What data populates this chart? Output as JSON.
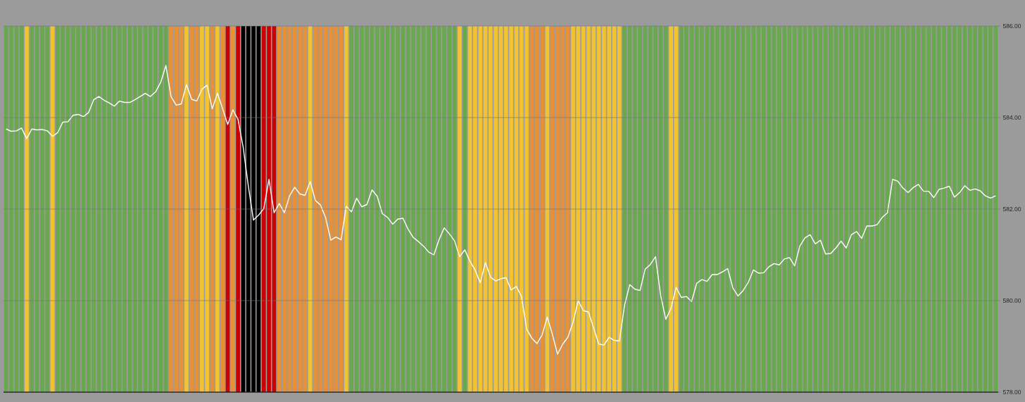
{
  "chart_data": {
    "type": "bar",
    "categories": [
      null,
      null,
      null,
      null,
      null,
      null,
      null,
      null,
      null,
      null,
      null,
      null,
      null,
      null,
      null,
      null,
      null,
      null,
      null,
      null,
      null,
      null,
      null,
      null,
      null,
      null,
      null,
      null,
      null,
      null,
      null,
      null,
      null,
      null,
      null,
      null,
      null,
      null,
      null,
      null,
      null,
      null,
      null,
      null,
      null,
      null,
      null,
      null,
      null,
      null,
      null,
      null,
      null,
      null,
      null,
      null,
      null,
      null,
      null,
      null,
      null,
      null,
      null,
      null,
      null,
      null,
      null,
      null,
      null,
      null,
      null,
      null,
      null,
      null,
      null,
      null,
      null,
      null,
      null,
      null,
      null,
      null,
      null,
      null,
      null,
      null,
      null,
      null,
      null,
      null,
      null,
      null,
      null,
      null,
      null,
      null,
      null,
      null,
      null,
      null,
      null,
      null,
      null,
      null,
      null,
      null,
      null,
      null,
      null,
      null,
      null,
      null,
      null,
      null,
      null,
      null,
      null,
      null,
      null,
      null,
      null,
      null,
      null,
      null,
      null,
      null,
      null,
      null,
      null,
      null,
      null,
      null,
      null,
      null,
      null,
      null,
      null,
      null,
      null,
      null,
      null,
      null,
      null,
      null,
      null,
      null,
      null,
      null,
      null,
      null,
      null,
      null,
      null,
      null,
      null,
      null,
      null,
      null,
      null,
      null,
      null,
      null,
      null,
      null,
      null,
      null,
      null,
      null,
      null,
      null,
      null,
      null,
      null,
      null,
      null,
      null,
      null,
      null,
      null,
      null,
      null,
      null,
      null,
      null,
      null,
      null,
      null,
      null,
      null,
      null,
      null,
      null,
      null
    ],
    "series": [
      {
        "color": "#6aa84f",
        "values": [
          586,
          586,
          586,
          586,
          null,
          586,
          586,
          586,
          586,
          null,
          586,
          586,
          586,
          586,
          586,
          586,
          586,
          586,
          586,
          586,
          586,
          586,
          586,
          586,
          586,
          586,
          586,
          586,
          586,
          586,
          586,
          586,
          null,
          null,
          null,
          null,
          null,
          null,
          null,
          null,
          null,
          null,
          null,
          null,
          null,
          null,
          null,
          null,
          null,
          null,
          null,
          null,
          null,
          null,
          null,
          null,
          null,
          null,
          null,
          null,
          null,
          null,
          null,
          null,
          null,
          null,
          null,
          586,
          586,
          586,
          586,
          586,
          586,
          586,
          586,
          586,
          586,
          586,
          586,
          586,
          586,
          586,
          586,
          586,
          586,
          586,
          586,
          586,
          null,
          586,
          null,
          null,
          null,
          null,
          null,
          null,
          null,
          null,
          null,
          null,
          null,
          null,
          null,
          null,
          null,
          null,
          null,
          null,
          null,
          null,
          null,
          null,
          null,
          null,
          null,
          null,
          null,
          null,
          null,
          null,
          586,
          586,
          586,
          586,
          586,
          586,
          586,
          586,
          586,
          null,
          null,
          586,
          586,
          586,
          586,
          586,
          586,
          586,
          586,
          586,
          586,
          586,
          586,
          586,
          586,
          586,
          586,
          586,
          586,
          586,
          586,
          586,
          586,
          586,
          586,
          586,
          586,
          586,
          586,
          586,
          586,
          586,
          586,
          586,
          586,
          586,
          586,
          586,
          586,
          586,
          586,
          586,
          586,
          586,
          586,
          586,
          586,
          586,
          586,
          586,
          586,
          586,
          586,
          586,
          586,
          586,
          586,
          586,
          586,
          586,
          586,
          586,
          586
        ]
      },
      {
        "color": "#f1c232",
        "values": [
          null,
          null,
          null,
          null,
          586,
          null,
          null,
          null,
          null,
          586,
          null,
          null,
          null,
          null,
          null,
          null,
          null,
          null,
          null,
          null,
          null,
          null,
          null,
          null,
          null,
          null,
          null,
          null,
          null,
          null,
          null,
          null,
          null,
          null,
          null,
          586,
          null,
          null,
          586,
          586,
          null,
          586,
          null,
          null,
          null,
          null,
          null,
          null,
          null,
          null,
          null,
          null,
          null,
          null,
          null,
          null,
          null,
          null,
          null,
          586,
          null,
          null,
          null,
          null,
          null,
          null,
          586,
          null,
          null,
          null,
          null,
          null,
          null,
          null,
          null,
          null,
          null,
          null,
          null,
          null,
          null,
          null,
          null,
          null,
          null,
          null,
          null,
          null,
          586,
          null,
          586,
          586,
          586,
          586,
          586,
          586,
          586,
          586,
          586,
          586,
          586,
          586,
          null,
          null,
          null,
          586,
          null,
          null,
          null,
          null,
          586,
          586,
          586,
          586,
          586,
          586,
          586,
          586,
          586,
          586,
          null,
          null,
          null,
          null,
          null,
          null,
          null,
          null,
          null,
          586,
          586,
          null,
          null,
          null,
          null,
          null,
          null,
          null,
          null,
          null,
          null,
          null,
          null,
          null,
          null,
          null,
          null,
          null,
          null,
          null,
          null,
          null,
          null,
          null,
          null,
          null,
          null,
          null,
          null,
          null,
          null,
          null,
          null,
          null,
          null,
          null,
          null,
          null,
          null,
          null,
          null,
          null,
          null,
          null,
          null,
          null,
          null,
          null,
          null,
          null,
          null,
          null,
          null,
          null,
          null,
          null,
          null,
          null,
          null,
          null,
          null,
          null,
          null
        ]
      },
      {
        "color": "#e69138",
        "values": [
          null,
          null,
          null,
          null,
          null,
          null,
          null,
          null,
          null,
          null,
          null,
          null,
          null,
          null,
          null,
          null,
          null,
          null,
          null,
          null,
          null,
          null,
          null,
          null,
          null,
          null,
          null,
          null,
          null,
          null,
          null,
          null,
          586,
          586,
          586,
          null,
          586,
          586,
          null,
          null,
          586,
          null,
          586,
          null,
          586,
          null,
          null,
          null,
          null,
          null,
          null,
          null,
          null,
          586,
          586,
          586,
          586,
          586,
          586,
          null,
          586,
          586,
          586,
          586,
          586,
          586,
          null,
          null,
          null,
          null,
          null,
          null,
          null,
          null,
          null,
          null,
          null,
          null,
          null,
          null,
          null,
          null,
          null,
          null,
          null,
          null,
          null,
          null,
          null,
          null,
          null,
          null,
          null,
          null,
          null,
          null,
          null,
          null,
          null,
          null,
          null,
          null,
          586,
          586,
          586,
          null,
          586,
          586,
          586,
          586,
          null,
          null,
          null,
          null,
          null,
          null,
          null,
          null,
          null,
          null,
          null,
          null,
          null,
          null,
          null,
          null,
          null,
          null,
          null,
          null,
          null,
          null,
          null,
          null,
          null,
          null,
          null,
          null,
          null,
          null,
          null,
          null,
          null,
          null,
          null,
          null,
          null,
          null,
          null,
          null,
          null,
          null,
          null,
          null,
          null,
          null,
          null,
          null,
          null,
          null,
          null,
          null,
          null,
          null,
          null,
          null,
          null,
          null,
          null,
          null,
          null,
          null,
          null,
          null,
          null,
          null,
          null,
          null,
          null,
          null,
          null,
          null,
          null,
          null,
          null,
          null,
          null,
          null,
          null,
          null,
          null,
          null,
          null
        ]
      },
      {
        "color": "#cc0000",
        "values": [
          null,
          null,
          null,
          null,
          null,
          null,
          null,
          null,
          null,
          null,
          null,
          null,
          null,
          null,
          null,
          null,
          null,
          null,
          null,
          null,
          null,
          null,
          null,
          null,
          null,
          null,
          null,
          null,
          null,
          null,
          null,
          null,
          null,
          null,
          null,
          null,
          null,
          null,
          null,
          null,
          null,
          null,
          null,
          586,
          null,
          586,
          null,
          null,
          null,
          null,
          586,
          586,
          586,
          null,
          null,
          null,
          null,
          null,
          null,
          null,
          null,
          null,
          null,
          null,
          null,
          null,
          null,
          null,
          null,
          null,
          null,
          null,
          null,
          null,
          null,
          null,
          null,
          null,
          null,
          null,
          null,
          null,
          null,
          null,
          null,
          null,
          null,
          null,
          null,
          null,
          null,
          null,
          null,
          null,
          null,
          null,
          null,
          null,
          null,
          null,
          null,
          null,
          null,
          null,
          null,
          null,
          null,
          null,
          null,
          null,
          null,
          null,
          null,
          null,
          null,
          null,
          null,
          null,
          null,
          null,
          null,
          null,
          null,
          null,
          null,
          null,
          null,
          null,
          null,
          null,
          null,
          null,
          null,
          null,
          null,
          null,
          null,
          null,
          null,
          null,
          null,
          null,
          null,
          null,
          null,
          null,
          null,
          null,
          null,
          null,
          null,
          null,
          null,
          null,
          null,
          null,
          null,
          null,
          null,
          null,
          null,
          null,
          null,
          null,
          null,
          null,
          null,
          null,
          null,
          null,
          null,
          null,
          null,
          null,
          null,
          null,
          null,
          null,
          null,
          null,
          null,
          null,
          null,
          null,
          null,
          null,
          null,
          null,
          null,
          null,
          null,
          null,
          null
        ]
      },
      {
        "color": "#000000",
        "values": [
          null,
          null,
          null,
          null,
          null,
          null,
          null,
          null,
          null,
          null,
          null,
          null,
          null,
          null,
          null,
          null,
          null,
          null,
          null,
          null,
          null,
          null,
          null,
          null,
          null,
          null,
          null,
          null,
          null,
          null,
          null,
          null,
          null,
          null,
          null,
          null,
          null,
          null,
          null,
          null,
          null,
          null,
          null,
          null,
          null,
          null,
          586,
          586,
          586,
          586,
          null,
          null,
          null,
          null,
          null,
          null,
          null,
          null,
          null,
          null,
          null,
          null,
          null,
          null,
          null,
          null,
          null,
          null,
          null,
          null,
          null,
          null,
          null,
          null,
          null,
          null,
          null,
          null,
          null,
          null,
          null,
          null,
          null,
          null,
          null,
          null,
          null,
          null,
          null,
          null,
          null,
          null,
          null,
          null,
          null,
          null,
          null,
          null,
          null,
          null,
          null,
          null,
          null,
          null,
          null,
          null,
          null,
          null,
          null,
          null,
          null,
          null,
          null,
          null,
          null,
          null,
          null,
          null,
          null,
          null,
          null,
          null,
          null,
          null,
          null,
          null,
          null,
          null,
          null,
          null,
          null,
          null,
          null,
          null,
          null,
          null,
          null,
          null,
          null,
          null,
          null,
          null,
          null,
          null,
          null,
          null,
          null,
          null,
          null,
          null,
          null,
          null,
          null,
          null,
          null,
          null,
          null,
          null,
          null,
          null,
          null,
          null,
          null,
          null,
          null,
          null,
          null,
          null,
          null,
          null,
          null,
          null,
          null,
          null,
          null,
          null,
          null,
          null,
          null,
          null,
          null,
          null,
          null,
          null,
          null,
          null,
          null,
          null,
          null,
          null,
          null,
          null,
          null
        ]
      },
      {
        "type": "line",
        "color": "#ffffff",
        "values": [
          583.75,
          583.7,
          583.71,
          583.77,
          583.54,
          583.75,
          583.73,
          583.74,
          583.71,
          583.59,
          583.67,
          583.9,
          583.91,
          584.05,
          584.07,
          584.02,
          584.11,
          584.39,
          584.46,
          584.38,
          584.32,
          584.25,
          584.36,
          584.33,
          584.33,
          584.39,
          584.46,
          584.53,
          584.46,
          584.56,
          584.77,
          585.14,
          584.46,
          584.27,
          584.3,
          584.72,
          584.4,
          584.36,
          584.62,
          584.71,
          584.19,
          584.53,
          584.2,
          583.85,
          584.17,
          583.96,
          583.35,
          582.5,
          581.76,
          581.87,
          582.01,
          582.65,
          581.92,
          582.12,
          581.92,
          582.29,
          582.48,
          582.33,
          582.3,
          582.6,
          582.19,
          582.09,
          581.81,
          581.32,
          581.39,
          581.33,
          582.06,
          581.94,
          582.24,
          582.05,
          582.1,
          582.42,
          582.28,
          581.9,
          581.82,
          581.67,
          581.78,
          581.8,
          581.56,
          581.38,
          581.29,
          581.19,
          581.06,
          581.0,
          581.33,
          581.59,
          581.46,
          581.31,
          580.96,
          581.11,
          580.86,
          580.67,
          580.39,
          580.83,
          580.51,
          580.43,
          580.48,
          580.5,
          580.23,
          580.31,
          580.09,
          579.38,
          579.18,
          579.06,
          579.25,
          579.64,
          579.26,
          578.83,
          579.05,
          579.2,
          579.53,
          580.0,
          579.78,
          579.75,
          579.4,
          579.05,
          579.03,
          579.2,
          579.13,
          579.12,
          579.9,
          580.35,
          580.25,
          580.22,
          580.69,
          580.79,
          580.96,
          580.11,
          579.59,
          579.83,
          580.29,
          580.07,
          580.09,
          579.98,
          580.38,
          580.46,
          580.42,
          580.57,
          580.57,
          580.63,
          580.7,
          580.28,
          580.1,
          580.22,
          580.4,
          580.67,
          580.6,
          580.61,
          580.74,
          580.81,
          580.78,
          580.91,
          580.94,
          580.76,
          581.19,
          581.37,
          581.44,
          581.24,
          581.32,
          581.02,
          581.03,
          581.15,
          581.3,
          581.15,
          581.44,
          581.51,
          581.36,
          581.63,
          581.63,
          581.66,
          581.82,
          581.92,
          582.65,
          582.61,
          582.46,
          582.36,
          582.47,
          582.54,
          582.39,
          582.39,
          582.25,
          582.43,
          582.46,
          582.5,
          582.26,
          582.36,
          582.51,
          582.41,
          582.44,
          582.4,
          582.29,
          582.24,
          582.29
        ]
      }
    ],
    "ylim": [
      578,
      586
    ],
    "yticks": [
      {
        "value": 578,
        "label": "578.00"
      },
      {
        "value": 580,
        "label": "580.00"
      },
      {
        "value": 582,
        "label": "582.00"
      },
      {
        "value": 584,
        "label": "584.00"
      },
      {
        "value": 586,
        "label": "586.00"
      }
    ],
    "grid": "y",
    "tick_labels": "y"
  }
}
